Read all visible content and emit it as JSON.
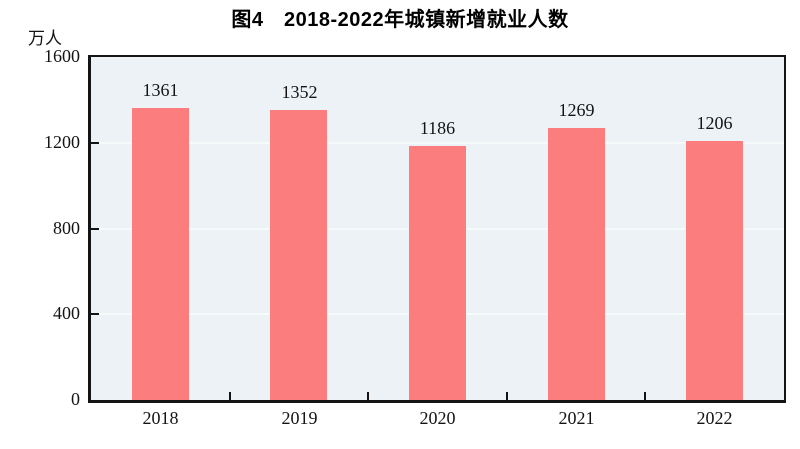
{
  "title": "图4　2018-2022年城镇新增就业人数",
  "unit_label": "万人",
  "colors": {
    "bar": "#FB7D7E",
    "plot_bg": "#ECF2F5",
    "axis": "#141414",
    "grid": "#F7FAFB",
    "text": "#141414"
  },
  "chart_data": {
    "type": "bar",
    "title": "图4　2018-2022年城镇新增就业人数",
    "categories": [
      "2018",
      "2019",
      "2020",
      "2021",
      "2022"
    ],
    "values": [
      1361,
      1352,
      1186,
      1269,
      1206
    ],
    "xlabel": "",
    "ylabel": "万人",
    "ylim": [
      0,
      1600
    ],
    "yticks": [
      0,
      400,
      800,
      1200,
      1600
    ],
    "grid": true,
    "data_labels": true,
    "legend": false
  }
}
